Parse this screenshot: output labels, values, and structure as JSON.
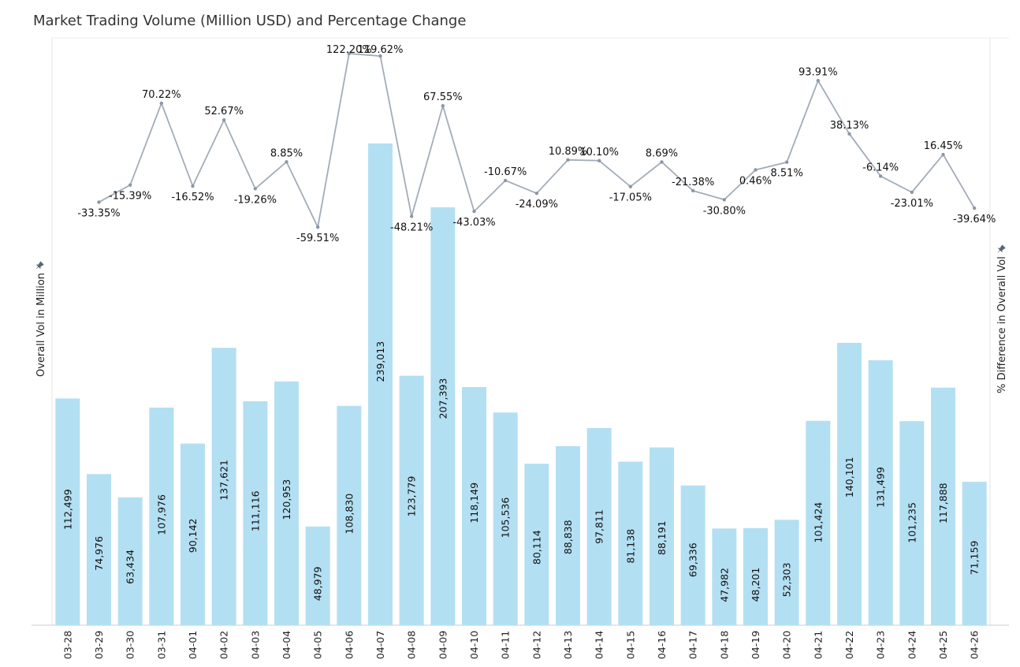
{
  "chart_data": {
    "type": "bar+line",
    "title": "Market Trading Volume (Million USD) and Percentage Change",
    "categories": [
      "03-28",
      "03-29",
      "03-30",
      "03-31",
      "04-01",
      "04-02",
      "04-03",
      "04-04",
      "04-05",
      "04-06",
      "04-07",
      "04-08",
      "04-09",
      "04-10",
      "04-11",
      "04-12",
      "04-13",
      "04-14",
      "04-15",
      "04-16",
      "04-17",
      "04-18",
      "04-19",
      "04-20",
      "04-21",
      "04-22",
      "04-23",
      "04-24",
      "04-25",
      "04-26"
    ],
    "bar_series": {
      "name": "Overall Vol in Million",
      "values": [
        112499,
        74976,
        63434,
        107976,
        90142,
        137621,
        111116,
        120953,
        48979,
        108830,
        239013,
        123779,
        207393,
        118149,
        105536,
        80114,
        88838,
        97811,
        81138,
        88191,
        69336,
        47982,
        48201,
        52303,
        101424,
        140101,
        131499,
        101235,
        117888,
        71159
      ],
      "labels": [
        "112,499",
        "74,976",
        "63,434",
        "107,976",
        "90,142",
        "137,621",
        "111,116",
        "120,953",
        "48,979",
        "108,830",
        "239,013",
        "123,779",
        "207,393",
        "118,149",
        "105,536",
        "80,114",
        "88,838",
        "97,811",
        "81,138",
        "88,191",
        "69,336",
        "47,982",
        "48,201",
        "52,303",
        "101,424",
        "140,101",
        "131,499",
        "101,235",
        "117,888",
        "71,159"
      ],
      "color": "#b3dff3"
    },
    "line_series": {
      "name": "% Difference in Overall Vol",
      "values": [
        null,
        -33.35,
        -15.39,
        70.22,
        -16.52,
        52.67,
        -19.26,
        8.85,
        -59.51,
        122.2,
        119.62,
        -48.21,
        67.55,
        -43.03,
        -10.67,
        -24.09,
        10.89,
        10.1,
        -17.05,
        8.69,
        -21.38,
        -30.8,
        0.46,
        8.51,
        93.91,
        38.13,
        -6.14,
        -23.01,
        16.45,
        -39.64
      ],
      "labels": [
        null,
        "-33.35%",
        "-15.39%",
        "70.22%",
        "-16.52%",
        "52.67%",
        "-19.26%",
        "8.85%",
        "-59.51%",
        "122.20%",
        "119.62%",
        "-48.21%",
        "67.55%",
        "-43.03%",
        "-10.67%",
        "-24.09%",
        "10.89%",
        "10.10%",
        "-17.05%",
        "8.69%",
        "-21.38%",
        "-30.80%",
        "0.46%",
        "8.51%",
        "93.91%",
        "38.13%",
        "-6.14%",
        "-23.01%",
        "16.45%",
        "-39.64%"
      ],
      "color": "#a2acb8"
    },
    "ylabel_left": "Overall Vol in Million",
    "ylabel_right": "% Difference in Overall Vol",
    "ylim_left": [
      0,
      260000
    ],
    "ylim_right": [
      -75,
      125
    ]
  }
}
